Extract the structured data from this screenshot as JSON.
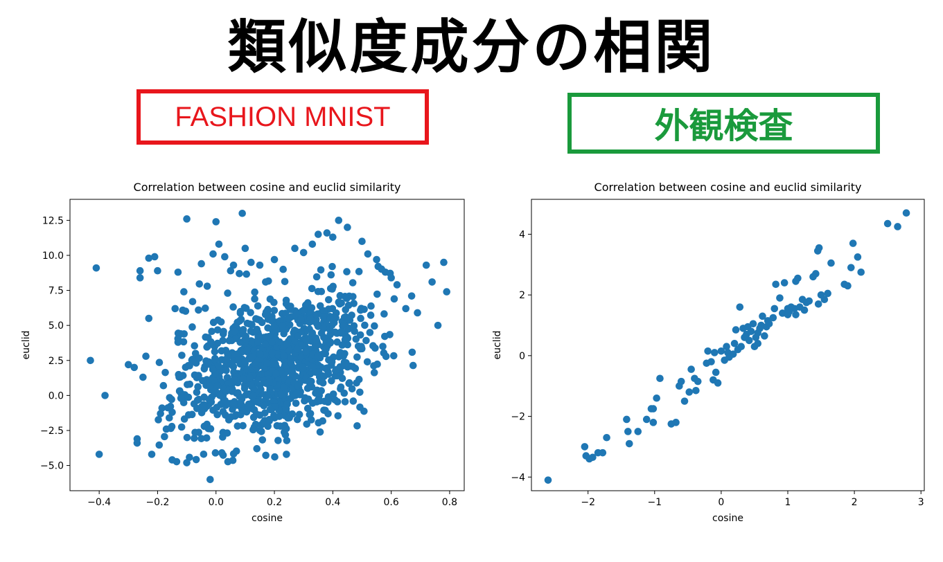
{
  "header": {
    "title": "類似度成分の相関",
    "left_label": "FASHION MNIST",
    "right_label": "外観検査"
  },
  "colors": {
    "left_label": "#e8161c",
    "right_label": "#1a9a3c",
    "marker": "#1f77b4"
  },
  "chart_data": [
    {
      "type": "scatter",
      "title": "Correlation between cosine and euclid similarity",
      "xlabel": "cosine",
      "ylabel": "euclid",
      "xlim": [
        -0.5,
        0.85
      ],
      "ylim": [
        -6.8,
        14.0
      ],
      "xticks": [
        -0.4,
        -0.2,
        0.0,
        0.2,
        0.4,
        0.6,
        0.8
      ],
      "xtick_labels": [
        "−0.4",
        "−0.2",
        "0.0",
        "0.2",
        "0.4",
        "0.6",
        "0.8"
      ],
      "yticks": [
        -5.0,
        -2.5,
        0.0,
        2.5,
        5.0,
        7.5,
        10.0,
        12.5
      ],
      "ytick_labels": [
        "−5.0",
        "−2.5",
        "0.0",
        "2.5",
        "5.0",
        "7.5",
        "10.0",
        "12.5"
      ],
      "grid": false,
      "legend": "none",
      "points": [
        [
          -0.43,
          2.5
        ],
        [
          -0.41,
          9.1
        ],
        [
          -0.4,
          -4.2
        ],
        [
          -0.38,
          0.0
        ],
        [
          -0.3,
          2.2
        ],
        [
          -0.28,
          2.0
        ],
        [
          -0.27,
          -3.1
        ],
        [
          -0.27,
          -3.4
        ],
        [
          -0.26,
          8.9
        ],
        [
          -0.26,
          8.4
        ],
        [
          -0.25,
          1.3
        ],
        [
          -0.24,
          2.8
        ],
        [
          -0.23,
          5.5
        ],
        [
          -0.23,
          9.8
        ],
        [
          -0.22,
          -4.2
        ],
        [
          -0.21,
          9.9
        ],
        [
          -0.2,
          8.9
        ],
        [
          -0.19,
          -1.3
        ],
        [
          -0.18,
          0.7
        ],
        [
          -0.17,
          -2.4
        ],
        [
          -0.16,
          -1.6
        ],
        [
          -0.15,
          -1.2
        ],
        [
          -0.15,
          -4.6
        ],
        [
          -0.14,
          6.2
        ],
        [
          -0.13,
          8.8
        ],
        [
          -0.13,
          3.8
        ],
        [
          -0.12,
          -0.2
        ],
        [
          -0.11,
          7.4
        ],
        [
          -0.1,
          12.6
        ],
        [
          -0.1,
          -4.8
        ],
        [
          -0.09,
          0.8
        ],
        [
          -0.08,
          6.7
        ],
        [
          -0.07,
          3.0
        ],
        [
          -0.06,
          6.1
        ],
        [
          -0.05,
          9.4
        ],
        [
          -0.04,
          -2.2
        ],
        [
          -0.03,
          7.8
        ],
        [
          -0.02,
          -6.0
        ],
        [
          -0.01,
          10.1
        ],
        [
          0.0,
          12.4
        ],
        [
          0.01,
          10.8
        ],
        [
          0.02,
          -4.1
        ],
        [
          0.03,
          9.9
        ],
        [
          0.04,
          7.3
        ],
        [
          0.05,
          8.9
        ],
        [
          0.06,
          9.3
        ],
        [
          0.08,
          8.7
        ],
        [
          0.09,
          13.0
        ],
        [
          0.1,
          10.5
        ],
        [
          0.12,
          9.5
        ],
        [
          0.14,
          -3.8
        ],
        [
          0.15,
          9.3
        ],
        [
          0.17,
          8.1
        ],
        [
          0.2,
          9.7
        ],
        [
          0.23,
          9.0
        ],
        [
          0.27,
          10.5
        ],
        [
          0.3,
          10.2
        ],
        [
          0.33,
          10.8
        ],
        [
          0.35,
          11.5
        ],
        [
          0.38,
          11.6
        ],
        [
          0.4,
          11.3
        ],
        [
          0.42,
          12.5
        ],
        [
          0.45,
          12.0
        ],
        [
          0.47,
          -0.4
        ],
        [
          0.5,
          11.0
        ],
        [
          0.52,
          10.1
        ],
        [
          0.55,
          9.7
        ],
        [
          0.58,
          8.8
        ],
        [
          0.6,
          8.4
        ],
        [
          0.62,
          7.9
        ],
        [
          0.65,
          6.2
        ],
        [
          0.67,
          7.1
        ],
        [
          0.69,
          5.9
        ],
        [
          0.72,
          9.3
        ],
        [
          0.74,
          8.1
        ],
        [
          0.76,
          5.0
        ],
        [
          0.78,
          9.5
        ],
        [
          0.79,
          7.4
        ],
        [
          0.35,
          -0.3
        ],
        [
          0.23,
          -2.2
        ]
      ],
      "cluster": {
        "n": 1050,
        "mean_x": 0.2,
        "mean_y": 2.2,
        "sd_x": 0.17,
        "sd_y": 2.6,
        "slope": 5.6,
        "resid_sd": 2.4,
        "x_range": [
          -0.2,
          0.68
        ]
      }
    },
    {
      "type": "scatter",
      "title": "Correlation between cosine and euclid similarity",
      "xlabel": "cosine",
      "ylabel": "euclid",
      "xlim": [
        -2.85,
        3.05
      ],
      "ylim": [
        -4.45,
        5.15
      ],
      "xticks": [
        -2,
        -1,
        0,
        1,
        2,
        3
      ],
      "xtick_labels": [
        "−2",
        "−1",
        "0",
        "1",
        "2",
        "3"
      ],
      "yticks": [
        -4,
        -2,
        0,
        2,
        4
      ],
      "ytick_labels": [
        "−4",
        "−2",
        "0",
        "2",
        "4"
      ],
      "grid": false,
      "legend": "none",
      "points": [
        [
          -2.6,
          -4.1
        ],
        [
          -2.05,
          -3.0
        ],
        [
          -2.03,
          -3.3
        ],
        [
          -1.98,
          -3.4
        ],
        [
          -1.93,
          -3.35
        ],
        [
          -1.85,
          -3.2
        ],
        [
          -1.78,
          -3.2
        ],
        [
          -1.72,
          -2.7
        ],
        [
          -1.42,
          -2.1
        ],
        [
          -1.4,
          -2.5
        ],
        [
          -1.38,
          -2.9
        ],
        [
          -1.25,
          -2.5
        ],
        [
          -1.12,
          -2.1
        ],
        [
          -1.02,
          -2.2
        ],
        [
          -1.05,
          -1.75
        ],
        [
          -0.97,
          -1.4
        ],
        [
          -0.92,
          -0.75
        ],
        [
          -0.75,
          -2.25
        ],
        [
          -0.68,
          -2.2
        ],
        [
          -0.63,
          -1.0
        ],
        [
          -0.6,
          -0.85
        ],
        [
          -0.55,
          -1.5
        ],
        [
          -0.48,
          -1.2
        ],
        [
          -0.45,
          -0.45
        ],
        [
          -0.4,
          -0.75
        ],
        [
          -0.38,
          -1.15
        ],
        [
          -0.35,
          -0.85
        ],
        [
          -0.22,
          -0.25
        ],
        [
          -0.2,
          0.15
        ],
        [
          -0.15,
          -0.2
        ],
        [
          -0.12,
          -0.8
        ],
        [
          -0.08,
          -0.55
        ],
        [
          -0.05,
          -0.9
        ],
        [
          0.0,
          0.15
        ],
        [
          0.05,
          -0.15
        ],
        [
          0.08,
          0.3
        ],
        [
          0.1,
          0.1
        ],
        [
          0.12,
          -0.05
        ],
        [
          0.18,
          0.05
        ],
        [
          0.2,
          0.4
        ],
        [
          0.22,
          0.85
        ],
        [
          0.25,
          0.2
        ],
        [
          0.28,
          1.6
        ],
        [
          0.3,
          0.3
        ],
        [
          0.33,
          0.9
        ],
        [
          0.35,
          0.6
        ],
        [
          0.38,
          0.7
        ],
        [
          0.4,
          0.95
        ],
        [
          0.42,
          0.5
        ],
        [
          0.45,
          0.8
        ],
        [
          0.48,
          1.05
        ],
        [
          0.5,
          0.3
        ],
        [
          0.52,
          0.6
        ],
        [
          0.55,
          0.4
        ],
        [
          0.58,
          0.9
        ],
        [
          0.6,
          1.0
        ],
        [
          0.62,
          1.3
        ],
        [
          0.65,
          0.65
        ],
        [
          0.68,
          0.95
        ],
        [
          0.72,
          1.05
        ],
        [
          0.78,
          1.25
        ],
        [
          0.8,
          1.55
        ],
        [
          0.82,
          2.35
        ],
        [
          0.88,
          1.9
        ],
        [
          0.92,
          1.4
        ],
        [
          0.95,
          2.4
        ],
        [
          1.0,
          1.55
        ],
        [
          1.0,
          1.35
        ],
        [
          1.02,
          1.45
        ],
        [
          1.05,
          1.6
        ],
        [
          1.1,
          1.55
        ],
        [
          1.12,
          1.35
        ],
        [
          1.15,
          2.55
        ],
        [
          1.18,
          1.6
        ],
        [
          1.22,
          1.85
        ],
        [
          1.25,
          1.5
        ],
        [
          1.28,
          1.75
        ],
        [
          1.32,
          1.8
        ],
        [
          1.38,
          2.6
        ],
        [
          1.42,
          2.7
        ],
        [
          1.45,
          3.45
        ],
        [
          1.47,
          3.55
        ],
        [
          1.5,
          2.0
        ],
        [
          1.55,
          1.85
        ],
        [
          1.6,
          2.05
        ],
        [
          1.65,
          3.05
        ],
        [
          1.85,
          2.35
        ],
        [
          1.9,
          2.3
        ],
        [
          1.95,
          2.9
        ],
        [
          1.98,
          3.7
        ],
        [
          2.05,
          3.25
        ],
        [
          2.1,
          2.75
        ],
        [
          2.5,
          4.35
        ],
        [
          2.65,
          4.25
        ],
        [
          2.78,
          4.7
        ],
        [
          1.46,
          1.7
        ],
        [
          -0.1,
          0.1
        ],
        [
          0.55,
          0.75
        ],
        [
          1.12,
          2.45
        ],
        [
          -1.02,
          -1.75
        ],
        [
          0.7,
          1.15
        ]
      ]
    }
  ]
}
